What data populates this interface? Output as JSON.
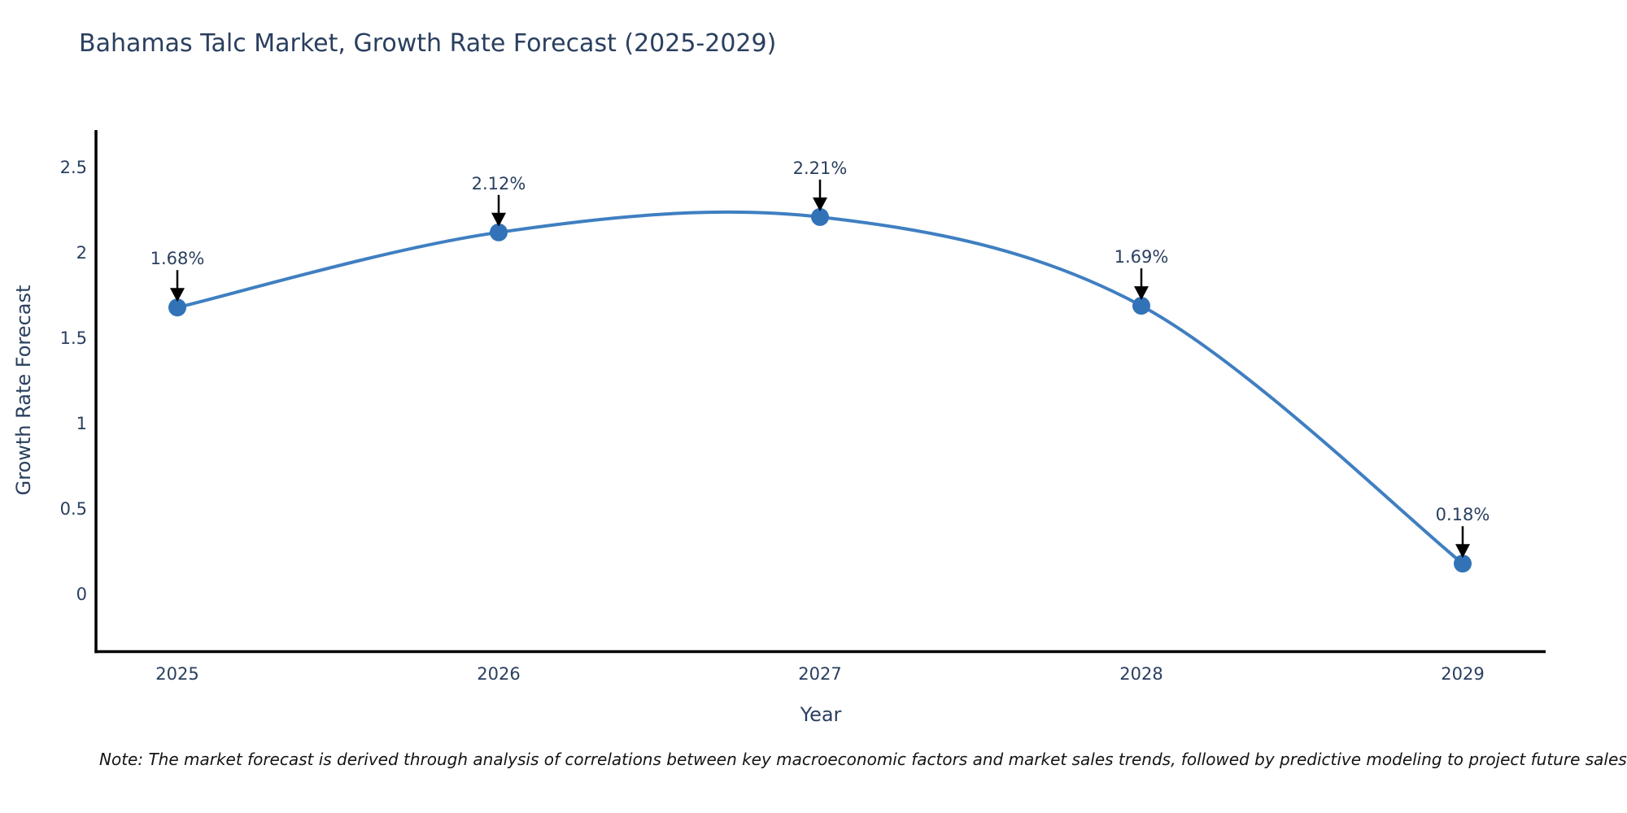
{
  "title": "Bahamas Talc Market, Growth Rate Forecast (2025-2029)",
  "note": "Note: The market forecast is derived through analysis of correlations between key macroeconomic factors and market sales trends, followed by predictive modeling to project future sales",
  "chart_data": {
    "type": "line",
    "title": "Bahamas Talc Market, Growth Rate Forecast (2025-2029)",
    "xlabel": "Year",
    "ylabel": "Growth Rate Forecast",
    "x": [
      2025,
      2026,
      2027,
      2028,
      2029
    ],
    "series": [
      {
        "name": "Growth Rate Forecast",
        "values": [
          1.68,
          2.12,
          2.21,
          1.69,
          0.18
        ]
      }
    ],
    "point_labels": [
      "1.68%",
      "2.12%",
      "2.21%",
      "1.69%",
      "0.18%"
    ],
    "yticks": [
      0,
      0.5,
      1,
      1.5,
      2,
      2.5
    ],
    "ylim": [
      -0.36,
      2.72
    ],
    "line_shape": "spline",
    "grid": false,
    "legend_position": "none",
    "colors": {
      "line": "#3f7fc1",
      "marker": "#3273b8",
      "axis": "#000000",
      "text": "#2a3f5f",
      "annotation_arrow": "#000000"
    }
  }
}
